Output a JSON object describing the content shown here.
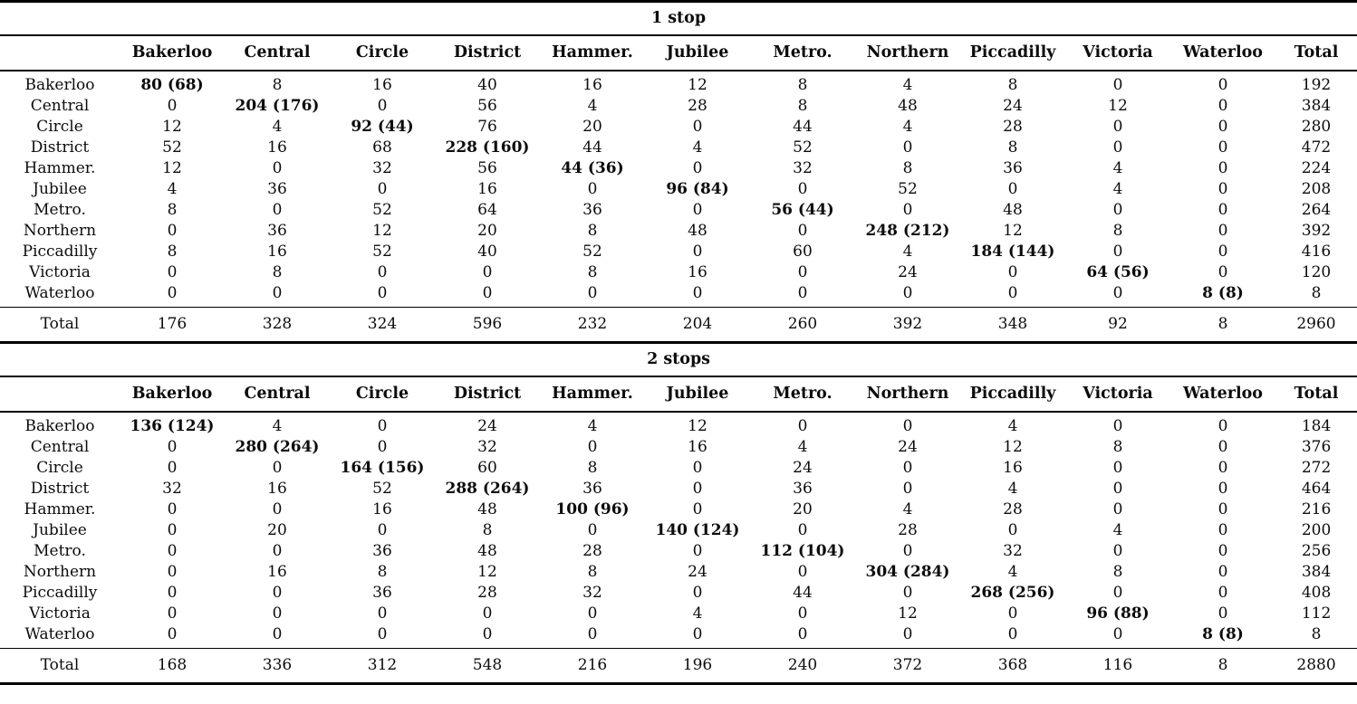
{
  "columns": [
    "Bakerloo",
    "Central",
    "Circle",
    "District",
    "Hammer.",
    "Jubilee",
    "Metro.",
    "Northern",
    "Piccadilly",
    "Victoria",
    "Waterloo",
    "Total"
  ],
  "tables": [
    {
      "title": "1 stop",
      "total_label": "Total",
      "rows": [
        {
          "label": "Bakerloo",
          "cells": [
            "80 (68)",
            "8",
            "16",
            "40",
            "16",
            "12",
            "8",
            "4",
            "8",
            "0",
            "0",
            "192"
          ]
        },
        {
          "label": "Central",
          "cells": [
            "0",
            "204 (176)",
            "0",
            "56",
            "4",
            "28",
            "8",
            "48",
            "24",
            "12",
            "0",
            "384"
          ]
        },
        {
          "label": "Circle",
          "cells": [
            "12",
            "4",
            "92 (44)",
            "76",
            "20",
            "0",
            "44",
            "4",
            "28",
            "0",
            "0",
            "280"
          ]
        },
        {
          "label": "District",
          "cells": [
            "52",
            "16",
            "68",
            "228 (160)",
            "44",
            "4",
            "52",
            "0",
            "8",
            "0",
            "0",
            "472"
          ]
        },
        {
          "label": "Hammer.",
          "cells": [
            "12",
            "0",
            "32",
            "56",
            "44 (36)",
            "0",
            "32",
            "8",
            "36",
            "4",
            "0",
            "224"
          ]
        },
        {
          "label": "Jubilee",
          "cells": [
            "4",
            "36",
            "0",
            "16",
            "0",
            "96 (84)",
            "0",
            "52",
            "0",
            "4",
            "0",
            "208"
          ]
        },
        {
          "label": "Metro.",
          "cells": [
            "8",
            "0",
            "52",
            "64",
            "36",
            "0",
            "56 (44)",
            "0",
            "48",
            "0",
            "0",
            "264"
          ]
        },
        {
          "label": "Northern",
          "cells": [
            "0",
            "36",
            "12",
            "20",
            "8",
            "48",
            "0",
            "248 (212)",
            "12",
            "8",
            "0",
            "392"
          ]
        },
        {
          "label": "Piccadilly",
          "cells": [
            "8",
            "16",
            "52",
            "40",
            "52",
            "0",
            "60",
            "4",
            "184 (144)",
            "0",
            "0",
            "416"
          ]
        },
        {
          "label": "Victoria",
          "cells": [
            "0",
            "8",
            "0",
            "0",
            "8",
            "16",
            "0",
            "24",
            "0",
            "64 (56)",
            "0",
            "120"
          ]
        },
        {
          "label": "Waterloo",
          "cells": [
            "0",
            "0",
            "0",
            "0",
            "0",
            "0",
            "0",
            "0",
            "0",
            "0",
            "8 (8)",
            "8"
          ]
        }
      ],
      "totals": [
        "176",
        "328",
        "324",
        "596",
        "232",
        "204",
        "260",
        "392",
        "348",
        "92",
        "8",
        "2960"
      ]
    },
    {
      "title": "2 stops",
      "total_label": "Total",
      "rows": [
        {
          "label": "Bakerloo",
          "cells": [
            "136 (124)",
            "4",
            "0",
            "24",
            "4",
            "12",
            "0",
            "0",
            "4",
            "0",
            "0",
            "184"
          ]
        },
        {
          "label": "Central",
          "cells": [
            "0",
            "280 (264)",
            "0",
            "32",
            "0",
            "16",
            "4",
            "24",
            "12",
            "8",
            "0",
            "376"
          ]
        },
        {
          "label": "Circle",
          "cells": [
            "0",
            "0",
            "164 (156)",
            "60",
            "8",
            "0",
            "24",
            "0",
            "16",
            "0",
            "0",
            "272"
          ]
        },
        {
          "label": "District",
          "cells": [
            "32",
            "16",
            "52",
            "288 (264)",
            "36",
            "0",
            "36",
            "0",
            "4",
            "0",
            "0",
            "464"
          ]
        },
        {
          "label": "Hammer.",
          "cells": [
            "0",
            "0",
            "16",
            "48",
            "100 (96)",
            "0",
            "20",
            "4",
            "28",
            "0",
            "0",
            "216"
          ]
        },
        {
          "label": "Jubilee",
          "cells": [
            "0",
            "20",
            "0",
            "8",
            "0",
            "140 (124)",
            "0",
            "28",
            "0",
            "4",
            "0",
            "200"
          ]
        },
        {
          "label": "Metro.",
          "cells": [
            "0",
            "0",
            "36",
            "48",
            "28",
            "0",
            "112 (104)",
            "0",
            "32",
            "0",
            "0",
            "256"
          ]
        },
        {
          "label": "Northern",
          "cells": [
            "0",
            "16",
            "8",
            "12",
            "8",
            "24",
            "0",
            "304 (284)",
            "4",
            "8",
            "0",
            "384"
          ]
        },
        {
          "label": "Piccadilly",
          "cells": [
            "0",
            "0",
            "36",
            "28",
            "32",
            "0",
            "44",
            "0",
            "268 (256)",
            "0",
            "0",
            "408"
          ]
        },
        {
          "label": "Victoria",
          "cells": [
            "0",
            "0",
            "0",
            "0",
            "0",
            "4",
            "0",
            "12",
            "0",
            "96 (88)",
            "0",
            "112"
          ]
        },
        {
          "label": "Waterloo",
          "cells": [
            "0",
            "0",
            "0",
            "0",
            "0",
            "0",
            "0",
            "0",
            "0",
            "0",
            "8 (8)",
            "8"
          ]
        }
      ],
      "totals": [
        "168",
        "336",
        "312",
        "548",
        "216",
        "196",
        "240",
        "372",
        "368",
        "116",
        "8",
        "2880"
      ]
    }
  ]
}
